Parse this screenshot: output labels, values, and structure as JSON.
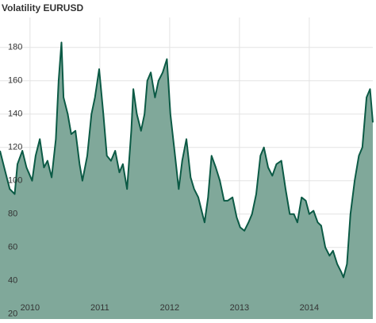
{
  "chart_data": {
    "type": "area",
    "title": "Volatility EURUSD",
    "x": [
      2009.57,
      2009.63,
      2009.71,
      2009.78,
      2009.82,
      2009.89,
      2009.95,
      2010.03,
      2010.08,
      2010.14,
      2010.2,
      2010.25,
      2010.31,
      2010.37,
      2010.41,
      2010.45,
      2010.48,
      2010.54,
      2010.59,
      2010.65,
      2010.71,
      2010.75,
      2010.82,
      2010.88,
      2010.93,
      2010.99,
      2011.05,
      2011.1,
      2011.16,
      2011.22,
      2011.28,
      2011.33,
      2011.39,
      2011.45,
      2011.48,
      2011.53,
      2011.59,
      2011.64,
      2011.68,
      2011.73,
      2011.79,
      2011.84,
      2011.9,
      2011.96,
      2012.01,
      2012.07,
      2012.13,
      2012.18,
      2012.24,
      2012.3,
      2012.35,
      2012.41,
      2012.47,
      2012.5,
      2012.55,
      2012.6,
      2012.66,
      2012.72,
      2012.78,
      2012.83,
      2012.9,
      2012.96,
      2013.01,
      2013.07,
      2013.13,
      2013.18,
      2013.24,
      2013.3,
      2013.35,
      2013.41,
      2013.47,
      2013.53,
      2013.6,
      2013.66,
      2013.72,
      2013.78,
      2013.83,
      2013.89,
      2013.95,
      2014.0,
      2014.06,
      2014.12,
      2014.17,
      2014.23,
      2014.29,
      2014.34,
      2014.4,
      2014.46,
      2014.49,
      2014.54,
      2014.59,
      2014.65,
      2014.71,
      2014.76,
      2014.82,
      2014.87,
      2014.91
    ],
    "series": [
      {
        "name": "Volatility EURUSD",
        "color": "#0b5a45",
        "fill": "#80a89a",
        "values": [
          118,
          108,
          95,
          92,
          110,
          118,
          108,
          100,
          115,
          125,
          108,
          112,
          102,
          125,
          160,
          183,
          150,
          140,
          128,
          130,
          110,
          100,
          115,
          140,
          150,
          167,
          140,
          115,
          112,
          118,
          105,
          110,
          95,
          130,
          155,
          140,
          130,
          140,
          160,
          165,
          150,
          160,
          165,
          173,
          140,
          118,
          95,
          112,
          125,
          102,
          95,
          90,
          80,
          75,
          90,
          115,
          108,
          100,
          88,
          88,
          90,
          78,
          72,
          70,
          75,
          80,
          92,
          115,
          120,
          108,
          103,
          110,
          112,
          95,
          80,
          80,
          75,
          90,
          88,
          80,
          82,
          75,
          73,
          60,
          55,
          58,
          50,
          45,
          42,
          50,
          80,
          100,
          115,
          120,
          150,
          155,
          135
        ]
      }
    ],
    "xlim": [
      2009.57,
      2014.91
    ],
    "xticks": [
      2010,
      2011,
      2012,
      2013,
      2014
    ],
    "ylim": [
      17,
      198
    ],
    "yticks": [
      20,
      40,
      60,
      80,
      100,
      120,
      140,
      160,
      180
    ],
    "grid": true
  }
}
